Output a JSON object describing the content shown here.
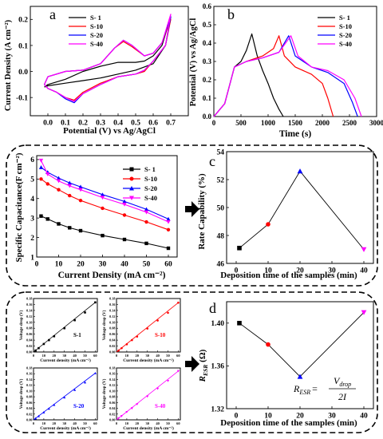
{
  "panels": {
    "a": {
      "letter": "a",
      "xlabel": "Potential (V) vs Ag/AgCl",
      "ylabel": "Current Density (A cm⁻²)",
      "xticks": [
        "0.0",
        "0.1",
        "0.2",
        "0.3",
        "0.4",
        "0.5",
        "0.6",
        "0.7"
      ],
      "yticks": [
        "-0.1",
        "0.0",
        "0.1",
        "0.2"
      ],
      "legend": [
        "S- 1",
        "S-10",
        "S-20",
        "S-40"
      ]
    },
    "b": {
      "letter": "b",
      "xlabel": "Time (s)",
      "ylabel": "Potential (V) vs Ag/AgCl",
      "xticks": [
        "0",
        "500",
        "1000",
        "1500",
        "2000",
        "2500",
        "3000"
      ],
      "yticks": [
        "0.0",
        "0.1",
        "0.2",
        "0.3",
        "0.4",
        "0.5",
        "0.6"
      ],
      "legend": [
        "S- 1",
        "S-10",
        "S-20",
        "S-40"
      ]
    },
    "left_c": {
      "xlabel": "Current Density (mA cm⁻²)",
      "ylabel": "Specific Capacitance(F cm⁻²)",
      "xticks": [
        "0",
        "10",
        "20",
        "30",
        "40",
        "50",
        "60"
      ],
      "yticks": [
        "1",
        "2",
        "3",
        "4",
        "5",
        "6"
      ],
      "legend": [
        "S- 1",
        "S-10",
        "S-20",
        "S-40"
      ]
    },
    "c": {
      "letter": "c",
      "xlabel": "Deposition time of the samples (min)",
      "ylabel": "Rate Capability (%)",
      "xticks": [
        "0",
        "10",
        "20",
        "30",
        "40"
      ],
      "yticks": [
        "46",
        "48",
        "50",
        "52",
        "54"
      ]
    },
    "d": {
      "letter": "d",
      "xlabel": "Deposition time of the samples (min)",
      "ylabel_main": "R",
      "ylabel_sub": "ESR",
      "ylabel_unit": "(Ω)",
      "xticks": [
        "0",
        "10",
        "20",
        "30",
        "40"
      ],
      "yticks": [
        "1.32",
        "1.36",
        "1.40"
      ],
      "formula_lhs_main": "R",
      "formula_lhs_sub": "ESR",
      "formula_eq": "=",
      "formula_num": "V",
      "formula_num_sub": "drop",
      "formula_den": "2I"
    },
    "small": {
      "ylabel": "Voltage drop (V)",
      "xlabel": "Current density (mA cm⁻²)",
      "xticks": [
        "0",
        "10",
        "20",
        "30",
        "40",
        "50",
        "60"
      ],
      "yticks": [
        "0.00",
        "0.02",
        "0.04",
        "0.06",
        "0.08",
        "0.10",
        "0.12",
        "0.14",
        "0.16",
        "0.18"
      ],
      "labels": [
        "S-1",
        "S-10",
        "S-20",
        "S-40"
      ]
    }
  },
  "colors": {
    "S1": "#000000",
    "S10": "#ff0000",
    "S20": "#0000ff",
    "S40": "#ff00ff"
  },
  "chart_data": [
    {
      "panel": "a",
      "type": "line",
      "xlabel": "Potential (V) vs Ag/AgCl",
      "ylabel": "Current Density (A cm⁻²)",
      "xlim": [
        -0.1,
        0.8
      ],
      "ylim": [
        -0.17,
        0.25
      ],
      "series": [
        {
          "name": "S- 1",
          "color": "#000000",
          "forward": [
            [
              -0.02,
              -0.06
            ],
            [
              0.0,
              -0.05
            ],
            [
              0.1,
              -0.03
            ],
            [
              0.2,
              0.0
            ],
            [
              0.3,
              0.02
            ],
            [
              0.4,
              0.035
            ],
            [
              0.5,
              0.035
            ],
            [
              0.55,
              0.04
            ],
            [
              0.6,
              0.06
            ],
            [
              0.65,
              0.1
            ],
            [
              0.7,
              0.21
            ]
          ],
          "reverse": [
            [
              0.7,
              0.21
            ],
            [
              0.67,
              0.1
            ],
            [
              0.6,
              0.03
            ],
            [
              0.5,
              0.005
            ],
            [
              0.4,
              -0.01
            ],
            [
              0.3,
              -0.025
            ],
            [
              0.2,
              -0.035
            ],
            [
              0.1,
              -0.045
            ],
            [
              0.0,
              -0.055
            ],
            [
              -0.02,
              -0.06
            ]
          ]
        },
        {
          "name": "S-10",
          "color": "#ff0000",
          "forward": [
            [
              -0.02,
              -0.05
            ],
            [
              0.0,
              -0.02
            ],
            [
              0.1,
              0.0
            ],
            [
              0.2,
              0.005
            ],
            [
              0.3,
              0.03
            ],
            [
              0.38,
              0.09
            ],
            [
              0.43,
              0.115
            ],
            [
              0.48,
              0.095
            ],
            [
              0.55,
              0.06
            ],
            [
              0.6,
              0.07
            ],
            [
              0.65,
              0.11
            ],
            [
              0.7,
              0.2
            ]
          ],
          "reverse": [
            [
              0.7,
              0.2
            ],
            [
              0.67,
              0.1
            ],
            [
              0.6,
              0.04
            ],
            [
              0.55,
              0.0
            ],
            [
              0.5,
              -0.01
            ],
            [
              0.4,
              -0.02
            ],
            [
              0.3,
              -0.045
            ],
            [
              0.2,
              -0.08
            ],
            [
              0.15,
              -0.11
            ],
            [
              0.1,
              -0.1
            ],
            [
              0.05,
              -0.08
            ],
            [
              0.0,
              -0.065
            ],
            [
              -0.02,
              -0.05
            ]
          ]
        },
        {
          "name": "S-20",
          "color": "#0000ff",
          "forward": [
            [
              -0.02,
              -0.05
            ],
            [
              0.0,
              -0.02
            ],
            [
              0.1,
              0.0
            ],
            [
              0.2,
              0.005
            ],
            [
              0.3,
              0.03
            ],
            [
              0.38,
              0.09
            ],
            [
              0.43,
              0.12
            ],
            [
              0.48,
              0.1
            ],
            [
              0.55,
              0.06
            ],
            [
              0.6,
              0.07
            ],
            [
              0.65,
              0.11
            ],
            [
              0.7,
              0.21
            ]
          ],
          "reverse": [
            [
              0.7,
              0.21
            ],
            [
              0.67,
              0.1
            ],
            [
              0.6,
              0.04
            ],
            [
              0.55,
              0.005
            ],
            [
              0.5,
              -0.01
            ],
            [
              0.4,
              -0.02
            ],
            [
              0.3,
              -0.05
            ],
            [
              0.2,
              -0.085
            ],
            [
              0.15,
              -0.12
            ],
            [
              0.1,
              -0.105
            ],
            [
              0.05,
              -0.08
            ],
            [
              0.0,
              -0.065
            ],
            [
              -0.02,
              -0.05
            ]
          ]
        },
        {
          "name": "S-40",
          "color": "#ff00ff",
          "forward": [
            [
              -0.02,
              -0.05
            ],
            [
              0.0,
              -0.02
            ],
            [
              0.1,
              0.0
            ],
            [
              0.2,
              0.005
            ],
            [
              0.3,
              0.03
            ],
            [
              0.38,
              0.09
            ],
            [
              0.43,
              0.12
            ],
            [
              0.48,
              0.1
            ],
            [
              0.55,
              0.06
            ],
            [
              0.6,
              0.07
            ],
            [
              0.65,
              0.11
            ],
            [
              0.7,
              0.22
            ]
          ],
          "reverse": [
            [
              0.7,
              0.22
            ],
            [
              0.67,
              0.1
            ],
            [
              0.6,
              0.04
            ],
            [
              0.55,
              0.005
            ],
            [
              0.5,
              -0.01
            ],
            [
              0.4,
              -0.02
            ],
            [
              0.3,
              -0.05
            ],
            [
              0.2,
              -0.085
            ],
            [
              0.15,
              -0.115
            ],
            [
              0.1,
              -0.1
            ],
            [
              0.05,
              -0.08
            ],
            [
              0.0,
              -0.065
            ],
            [
              -0.02,
              -0.05
            ]
          ]
        }
      ]
    },
    {
      "panel": "b",
      "type": "line",
      "xlabel": "Time (s)",
      "ylabel": "Potential (V) vs Ag/AgCl",
      "xlim": [
        0,
        3000
      ],
      "ylim": [
        0.0,
        0.6
      ],
      "series": [
        {
          "name": "S- 1",
          "color": "#000000",
          "points": [
            [
              0,
              0.0
            ],
            [
              200,
              0.07
            ],
            [
              380,
              0.27
            ],
            [
              500,
              0.3
            ],
            [
              600,
              0.36
            ],
            [
              700,
              0.45
            ],
            [
              800,
              0.33
            ],
            [
              900,
              0.25
            ],
            [
              1000,
              0.18
            ],
            [
              1100,
              0.1
            ],
            [
              1200,
              0.04
            ],
            [
              1280,
              0.0
            ]
          ]
        },
        {
          "name": "S-10",
          "color": "#ff0000",
          "points": [
            [
              0,
              0.0
            ],
            [
              200,
              0.07
            ],
            [
              380,
              0.27
            ],
            [
              600,
              0.3
            ],
            [
              900,
              0.33
            ],
            [
              1100,
              0.37
            ],
            [
              1200,
              0.44
            ],
            [
              1300,
              0.33
            ],
            [
              1500,
              0.27
            ],
            [
              1800,
              0.23
            ],
            [
              2000,
              0.18
            ],
            [
              2100,
              0.1
            ],
            [
              2200,
              0.0
            ]
          ]
        },
        {
          "name": "S-20",
          "color": "#0000ff",
          "points": [
            [
              0,
              0.0
            ],
            [
              200,
              0.07
            ],
            [
              380,
              0.27
            ],
            [
              600,
              0.3
            ],
            [
              900,
              0.32
            ],
            [
              1200,
              0.35
            ],
            [
              1380,
              0.44
            ],
            [
              1500,
              0.33
            ],
            [
              1800,
              0.27
            ],
            [
              2100,
              0.24
            ],
            [
              2400,
              0.18
            ],
            [
              2550,
              0.08
            ],
            [
              2650,
              0.0
            ]
          ]
        },
        {
          "name": "S-40",
          "color": "#ff00ff",
          "points": [
            [
              0,
              0.0
            ],
            [
              200,
              0.07
            ],
            [
              380,
              0.27
            ],
            [
              600,
              0.3
            ],
            [
              900,
              0.32
            ],
            [
              1200,
              0.35
            ],
            [
              1420,
              0.44
            ],
            [
              1550,
              0.33
            ],
            [
              1800,
              0.27
            ],
            [
              2100,
              0.25
            ],
            [
              2400,
              0.2
            ],
            [
              2600,
              0.1
            ],
            [
              2720,
              0.0
            ]
          ]
        }
      ]
    },
    {
      "panel": "left_c",
      "type": "line",
      "xlabel": "Current Density (mA cm⁻²)",
      "ylabel": "Specific Capacitance(F cm⁻²)",
      "xlim": [
        0,
        64
      ],
      "ylim": [
        1,
        6.2
      ],
      "x": [
        2,
        5,
        10,
        15,
        20,
        30,
        40,
        50,
        60
      ],
      "series": [
        {
          "name": "S- 1",
          "color": "#000000",
          "marker": "square",
          "values": [
            3.1,
            2.95,
            2.7,
            2.5,
            2.35,
            2.1,
            1.9,
            1.7,
            1.45
          ]
        },
        {
          "name": "S-10",
          "color": "#ff0000",
          "marker": "circle",
          "values": [
            5.0,
            4.75,
            4.45,
            4.15,
            3.9,
            3.5,
            3.15,
            2.8,
            2.4
          ]
        },
        {
          "name": "S-20",
          "color": "#0000ff",
          "marker": "triangle-up",
          "values": [
            5.6,
            5.35,
            5.05,
            4.8,
            4.6,
            4.2,
            3.85,
            3.45,
            2.95
          ]
        },
        {
          "name": "S-40",
          "color": "#ff00ff",
          "marker": "triangle-down",
          "values": [
            5.95,
            5.25,
            4.9,
            4.65,
            4.45,
            4.05,
            3.7,
            3.3,
            2.8
          ]
        }
      ]
    },
    {
      "panel": "c",
      "type": "line",
      "xlabel": "Deposition time of the samples (min)",
      "ylabel": "Rate Capability (%)",
      "xlim": [
        -3,
        43
      ],
      "ylim": [
        46,
        54
      ],
      "points": [
        {
          "x": 1,
          "y": 47.1,
          "color": "#000000",
          "marker": "square"
        },
        {
          "x": 10,
          "y": 48.8,
          "color": "#ff0000",
          "marker": "circle"
        },
        {
          "x": 20,
          "y": 52.6,
          "color": "#0000ff",
          "marker": "triangle-up"
        },
        {
          "x": 40,
          "y": 47.0,
          "color": "#ff00ff",
          "marker": "triangle-down"
        }
      ]
    },
    {
      "panel": "d",
      "type": "line",
      "xlabel": "Deposition time of the samples (min)",
      "ylabel": "R ESR (Ω)",
      "xlim": [
        -3,
        43
      ],
      "ylim": [
        1.32,
        1.42
      ],
      "points": [
        {
          "x": 1,
          "y": 1.4,
          "color": "#000000",
          "marker": "square"
        },
        {
          "x": 10,
          "y": 1.38,
          "color": "#ff0000",
          "marker": "circle"
        },
        {
          "x": 20,
          "y": 1.35,
          "color": "#0000ff",
          "marker": "triangle-up"
        },
        {
          "x": 40,
          "y": 1.41,
          "color": "#ff00ff",
          "marker": "triangle-down"
        }
      ]
    },
    {
      "panel": "small",
      "type": "scatter",
      "xlabel": "Current density (mA cm⁻²)",
      "ylabel": "Voltage drop (V)",
      "xlim": [
        0,
        62
      ],
      "ylim": [
        0,
        0.18
      ],
      "x": [
        2,
        5,
        10,
        15,
        20,
        30,
        40,
        50,
        60
      ],
      "series": [
        {
          "name": "S-1",
          "color": "#000000",
          "marker": "square",
          "values": [
            0.005,
            0.013,
            0.027,
            0.04,
            0.053,
            0.08,
            0.107,
            0.133,
            0.167
          ]
        },
        {
          "name": "S-10",
          "color": "#ff0000",
          "marker": "circle",
          "values": [
            0.005,
            0.013,
            0.026,
            0.04,
            0.052,
            0.079,
            0.106,
            0.132,
            0.166
          ]
        },
        {
          "name": "S-20",
          "color": "#0000ff",
          "marker": "triangle-up",
          "values": [
            0.005,
            0.013,
            0.026,
            0.039,
            0.052,
            0.078,
            0.104,
            0.13,
            0.162
          ]
        },
        {
          "name": "S-40",
          "color": "#ff00ff",
          "marker": "triangle-down",
          "values": [
            0.005,
            0.013,
            0.027,
            0.04,
            0.054,
            0.081,
            0.108,
            0.135,
            0.169
          ]
        }
      ]
    }
  ]
}
